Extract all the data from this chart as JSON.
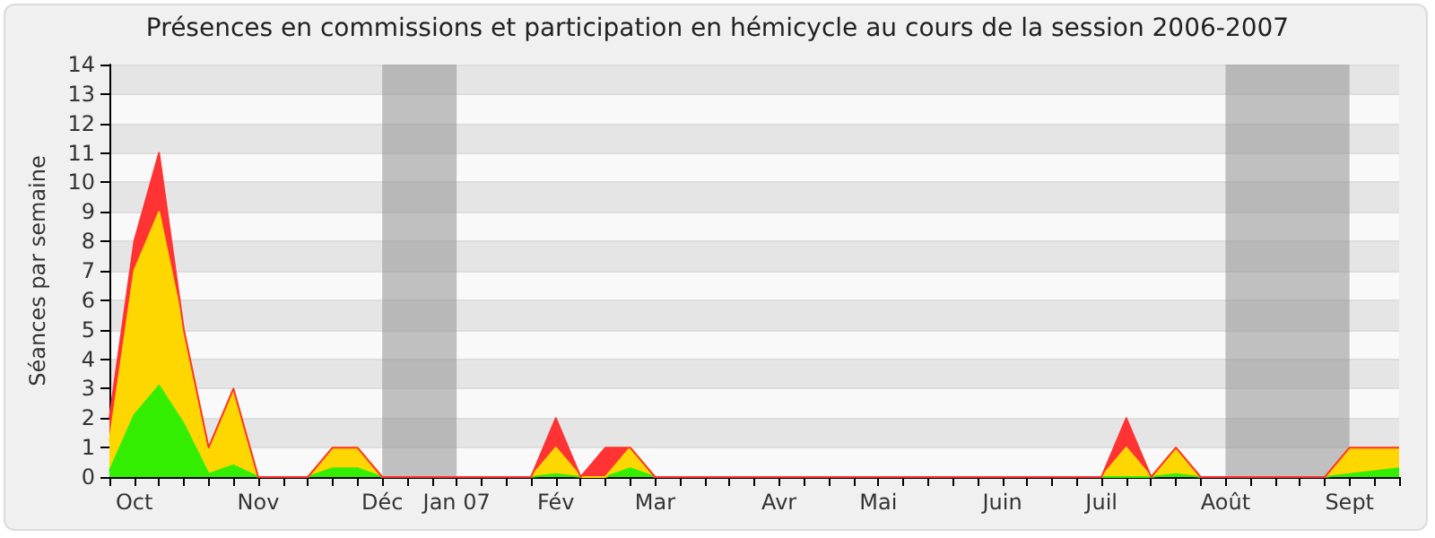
{
  "chart_data": {
    "type": "area",
    "stacked": true,
    "title": "Présences en commissions et participation en hémicycle au cours de la session 2006-2007",
    "ylabel": "Séances par semaine",
    "categories": [
      null,
      "Oct",
      null,
      null,
      null,
      null,
      "Nov",
      null,
      null,
      null,
      null,
      "Déc",
      null,
      null,
      "Jan 07",
      null,
      null,
      null,
      "Fév",
      null,
      null,
      null,
      "Mar",
      null,
      null,
      null,
      null,
      "Avr",
      null,
      null,
      null,
      "Mai",
      null,
      null,
      null,
      null,
      "Juin",
      null,
      null,
      null,
      "Juil",
      null,
      null,
      null,
      null,
      "Août",
      null,
      null,
      null,
      null,
      "Sept",
      null,
      null
    ],
    "series": [
      {
        "color": "#33ee00",
        "values": [
          0.2,
          2.1,
          3.1,
          1.8,
          0.1,
          0.4,
          0,
          0,
          0,
          0.3,
          0.3,
          0,
          0,
          0,
          0,
          0,
          0,
          0,
          0.1,
          0,
          0,
          0.3,
          0,
          0,
          0,
          0,
          0,
          0,
          0,
          0,
          0,
          0,
          0,
          0,
          0,
          0,
          0,
          0,
          0,
          0,
          0,
          0,
          0,
          0.1,
          0,
          0,
          0,
          0,
          0,
          0,
          0.1,
          0.2,
          0.3
        ]
      },
      {
        "color": "#ffd700",
        "values": [
          1,
          4.9,
          5.9,
          3.2,
          0.9,
          2.6,
          0,
          0,
          0,
          0.7,
          0.7,
          0,
          0,
          0,
          0,
          0,
          0,
          0,
          0.9,
          0,
          0,
          0.7,
          0,
          0,
          0,
          0,
          0,
          0,
          0,
          0,
          0,
          0,
          0,
          0,
          0,
          0,
          0,
          0,
          0,
          0,
          0,
          1,
          0,
          0.9,
          0,
          0,
          0,
          0,
          0,
          0,
          0.9,
          0.8,
          0.7
        ]
      },
      {
        "color": "#ff3333",
        "values": [
          0.8,
          1,
          2,
          0,
          0,
          0,
          0,
          0,
          0,
          0,
          0,
          0,
          0,
          0,
          0,
          0,
          0,
          0,
          1,
          0,
          1,
          0,
          0,
          0,
          0,
          0,
          0,
          0,
          0,
          0,
          0,
          0,
          0,
          0,
          0,
          0,
          0,
          0,
          0,
          0,
          0,
          1,
          0,
          0,
          0,
          0,
          0,
          0,
          0,
          0,
          0,
          0,
          0
        ]
      }
    ],
    "ylim": [
      0,
      14
    ],
    "yticks": [
      0,
      1,
      2,
      3,
      4,
      5,
      6,
      7,
      8,
      9,
      10,
      11,
      12,
      13,
      14
    ],
    "grid": "y",
    "bands": [
      {
        "axis": "x",
        "from": "Déc",
        "to": "Jan 07",
        "color": "#999999"
      },
      {
        "axis": "x",
        "from": "Août",
        "to": "Sept",
        "color": "#999999"
      }
    ]
  }
}
